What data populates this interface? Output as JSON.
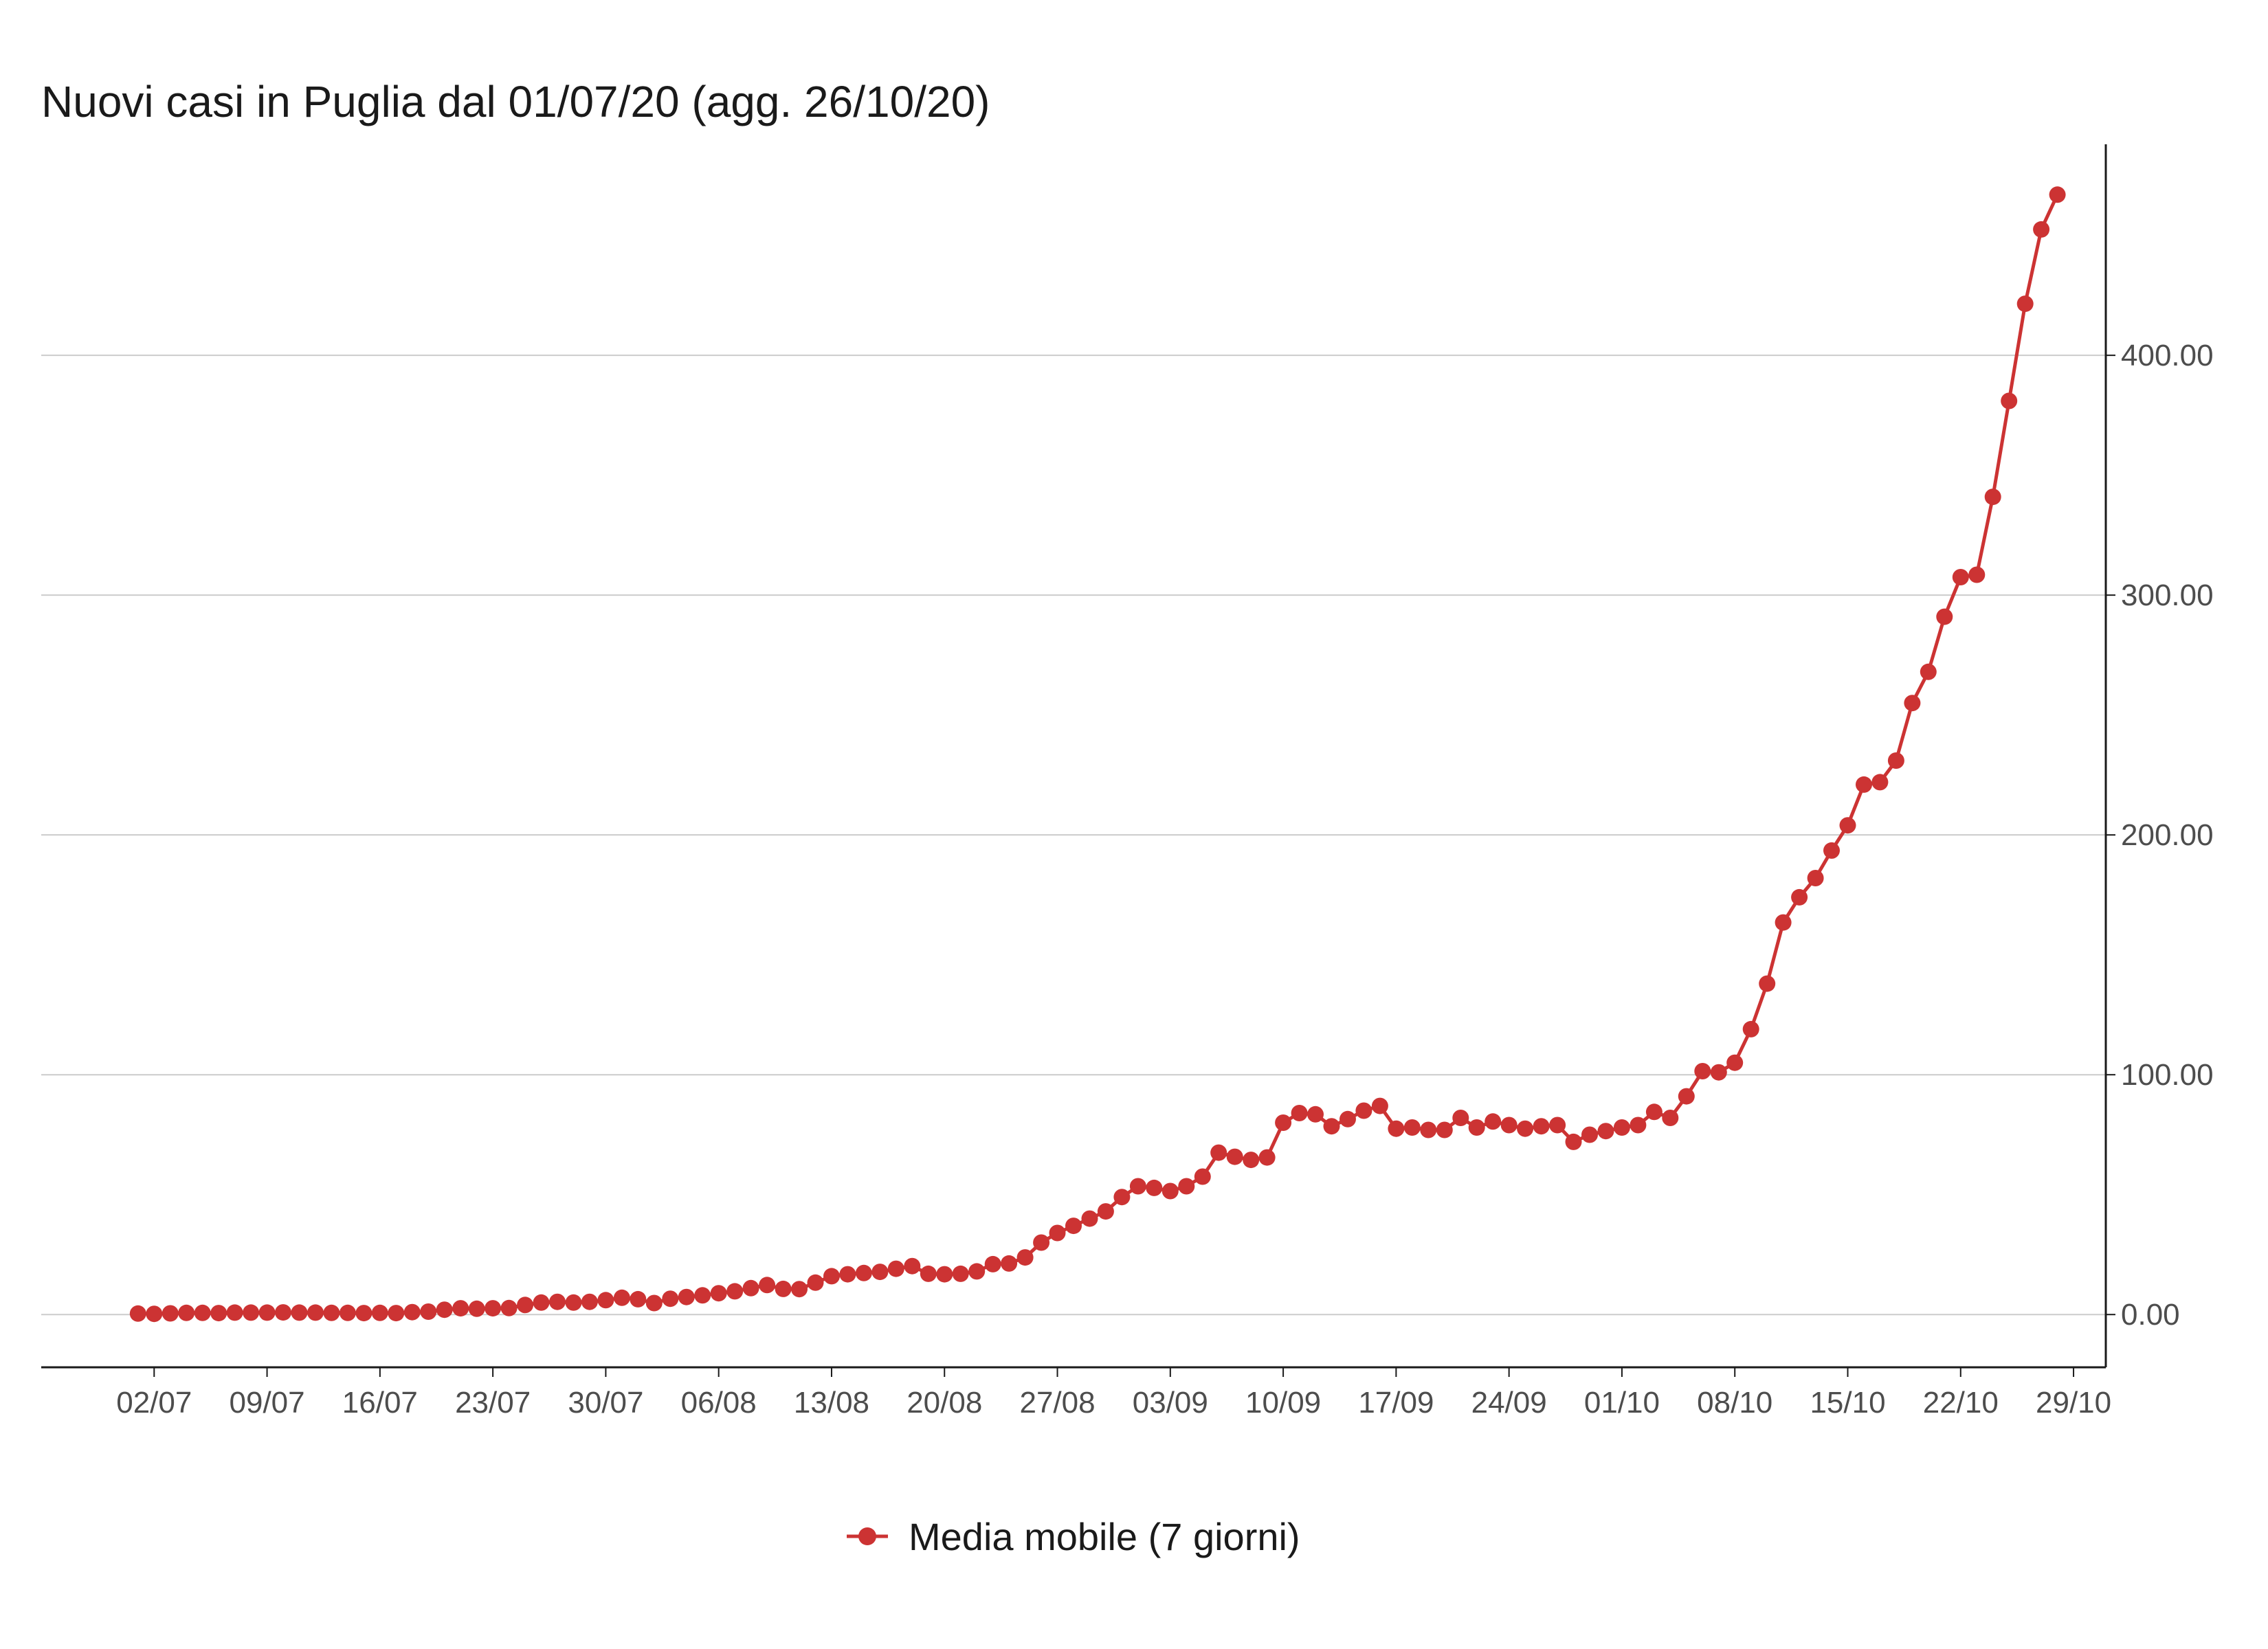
{
  "chart_data": {
    "type": "line",
    "title": "Nuovi casi in Puglia dal 01/07/20 (agg. 26/10/20)",
    "xlabel": "",
    "ylabel": "",
    "x_tick_labels": [
      "02/07",
      "09/07",
      "16/07",
      "23/07",
      "30/07",
      "06/08",
      "13/08",
      "20/08",
      "27/08",
      "03/09",
      "10/09",
      "17/09",
      "24/09",
      "01/10",
      "08/10",
      "15/10",
      "22/10",
      "29/10"
    ],
    "y_tick_labels": [
      "0.00",
      "100.00",
      "200.00",
      "300.00",
      "400.00"
    ],
    "y_ticks": [
      0,
      100,
      200,
      300,
      400
    ],
    "ylim": [
      -22,
      488
    ],
    "x_range": [
      "2020-06-25",
      "2020-10-31"
    ],
    "grid": "horizontal",
    "y_axis_position": "right",
    "legend_position": "bottom",
    "series": [
      {
        "name": "Media mobile (7 giorni)",
        "color": "#cc3333",
        "x_start": "2020-07-01",
        "values": [
          0.4,
          0.3,
          0.5,
          0.7,
          0.7,
          0.6,
          0.8,
          0.8,
          0.8,
          0.9,
          0.8,
          0.8,
          0.7,
          0.7,
          0.6,
          0.7,
          0.6,
          1.0,
          1.2,
          2.0,
          2.6,
          2.4,
          2.6,
          2.7,
          4.0,
          5.0,
          5.3,
          5.0,
          5.3,
          6.0,
          7.0,
          6.4,
          4.8,
          6.6,
          7.3,
          8.0,
          8.9,
          9.7,
          11.0,
          12.3,
          10.7,
          10.6,
          13.3,
          16.0,
          16.8,
          17.3,
          17.8,
          19.1,
          20.2,
          17.0,
          16.8,
          17.0,
          18.0,
          21.0,
          21.3,
          23.8,
          30.0,
          34.0,
          37.0,
          40.0,
          43.0,
          49.0,
          53.5,
          52.8,
          51.5,
          53.5,
          57.5,
          67.5,
          65.8,
          64.5,
          65.5,
          80.0,
          84.0,
          83.5,
          78.5,
          81.5,
          85.0,
          87.0,
          77.5,
          78.0,
          77.0,
          77.0,
          82.0,
          78.0,
          80.5,
          79.0,
          77.5,
          78.5,
          79.0,
          72.0,
          75.0,
          76.5,
          78.0,
          79.0,
          84.5,
          82.0,
          91.0,
          101.5,
          101.0,
          105.0,
          119.0,
          138.0,
          163.5,
          174.0,
          182.0,
          193.5,
          204.0,
          221.0,
          222.0,
          231.0,
          255.0,
          268.0,
          291.0,
          307.5,
          308.5,
          341.0,
          381.0,
          421.5,
          452.5,
          467.0
        ]
      }
    ]
  },
  "colors": {
    "series": "#cc3333",
    "grid": "#cccccc",
    "axis": "#1a1a1a",
    "tick_text": "#4d4d4d"
  }
}
